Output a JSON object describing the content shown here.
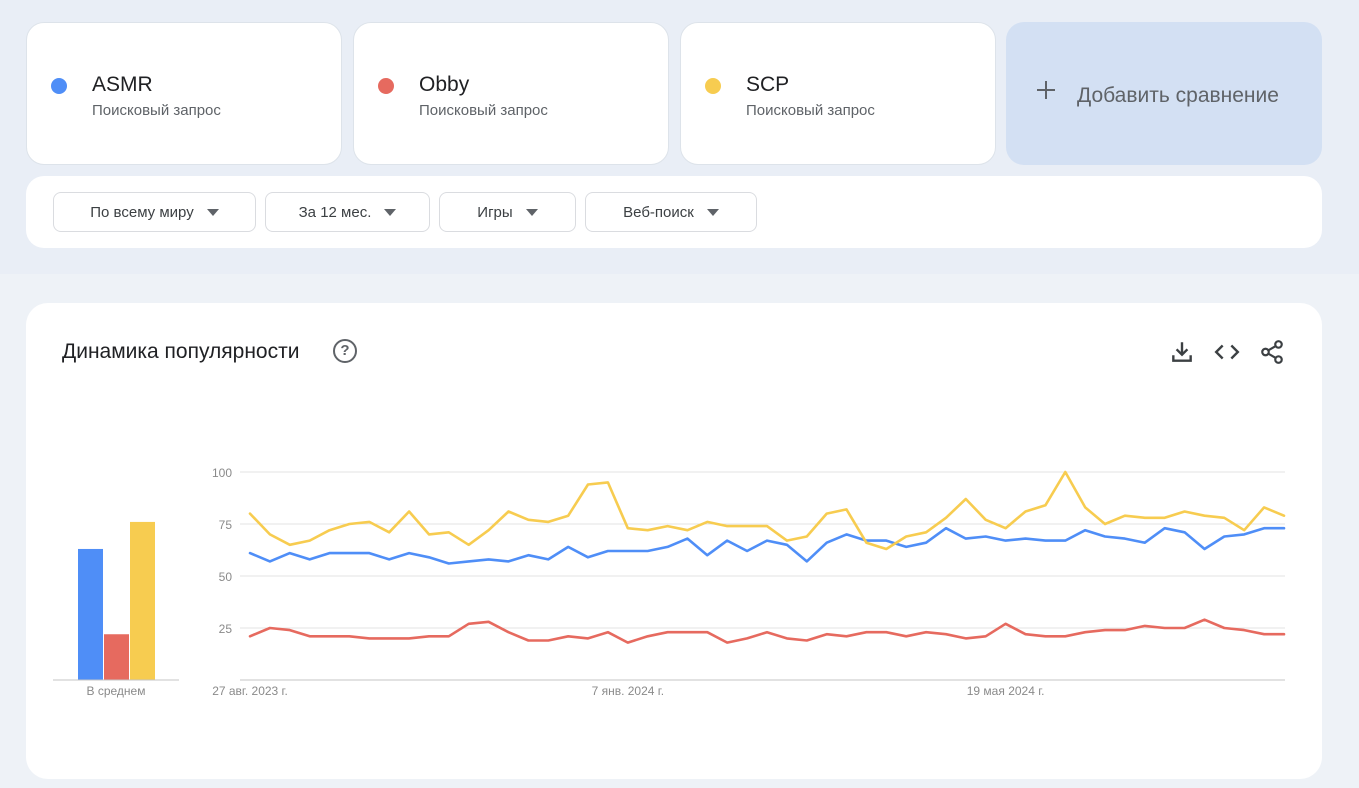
{
  "terms": [
    {
      "name": "ASMR",
      "sub": "Поисковый запрос",
      "color": "#4f8ef7"
    },
    {
      "name": "Obby",
      "sub": "Поисковый запрос",
      "color": "#e66a5f"
    },
    {
      "name": "SCP",
      "sub": "Поисковый запрос",
      "color": "#f7cc50"
    }
  ],
  "add_compare": "Добавить сравнение",
  "filters": [
    {
      "label": "По всему миру"
    },
    {
      "label": "За 12 мес."
    },
    {
      "label": "Игры"
    },
    {
      "label": "Веб-поиск"
    }
  ],
  "chart_header": {
    "title": "Динамика популярности",
    "help_icon": "help-circle-icon",
    "tools": [
      "download-icon",
      "embed-code-icon",
      "share-icon"
    ]
  },
  "chart_data": {
    "type": "line",
    "ylim": [
      0,
      100
    ],
    "y_ticks": [
      "25",
      "50",
      "75",
      "100"
    ],
    "x_tick_labels": [
      "27 авг. 2023 г.",
      "7 янв. 2024 г.",
      "19 мая 2024 г."
    ],
    "x_tick_indices": [
      0,
      19,
      38
    ],
    "average_label": "В среднем",
    "series": [
      {
        "name": "ASMR",
        "color": "#4f8ef7",
        "average": 63,
        "values": [
          61,
          57,
          61,
          58,
          61,
          61,
          61,
          58,
          61,
          59,
          56,
          57,
          58,
          57,
          60,
          58,
          64,
          59,
          62,
          62,
          62,
          64,
          68,
          60,
          67,
          62,
          67,
          65,
          57,
          66,
          70,
          67,
          67,
          64,
          66,
          73,
          68,
          69,
          67,
          68,
          67,
          67,
          72,
          69,
          68,
          66,
          73,
          71,
          63,
          69,
          70,
          73,
          73
        ]
      },
      {
        "name": "Obby",
        "color": "#e66a5f",
        "average": 22,
        "values": [
          21,
          25,
          24,
          21,
          21,
          21,
          20,
          20,
          20,
          21,
          21,
          27,
          28,
          23,
          19,
          19,
          21,
          20,
          23,
          18,
          21,
          23,
          23,
          23,
          18,
          20,
          23,
          20,
          19,
          22,
          21,
          23,
          23,
          21,
          23,
          22,
          20,
          21,
          27,
          22,
          21,
          21,
          23,
          24,
          24,
          26,
          25,
          25,
          29,
          25,
          24,
          22,
          22
        ]
      },
      {
        "name": "SCP",
        "color": "#f7cc50",
        "average": 76,
        "values": [
          80,
          70,
          65,
          67,
          72,
          75,
          76,
          71,
          81,
          70,
          71,
          65,
          72,
          81,
          77,
          76,
          79,
          94,
          95,
          73,
          72,
          74,
          72,
          76,
          74,
          74,
          74,
          67,
          69,
          80,
          82,
          66,
          63,
          69,
          71,
          78,
          87,
          77,
          73,
          81,
          84,
          100,
          83,
          75,
          79,
          78,
          78,
          81,
          79,
          78,
          72,
          83,
          79
        ]
      }
    ]
  }
}
